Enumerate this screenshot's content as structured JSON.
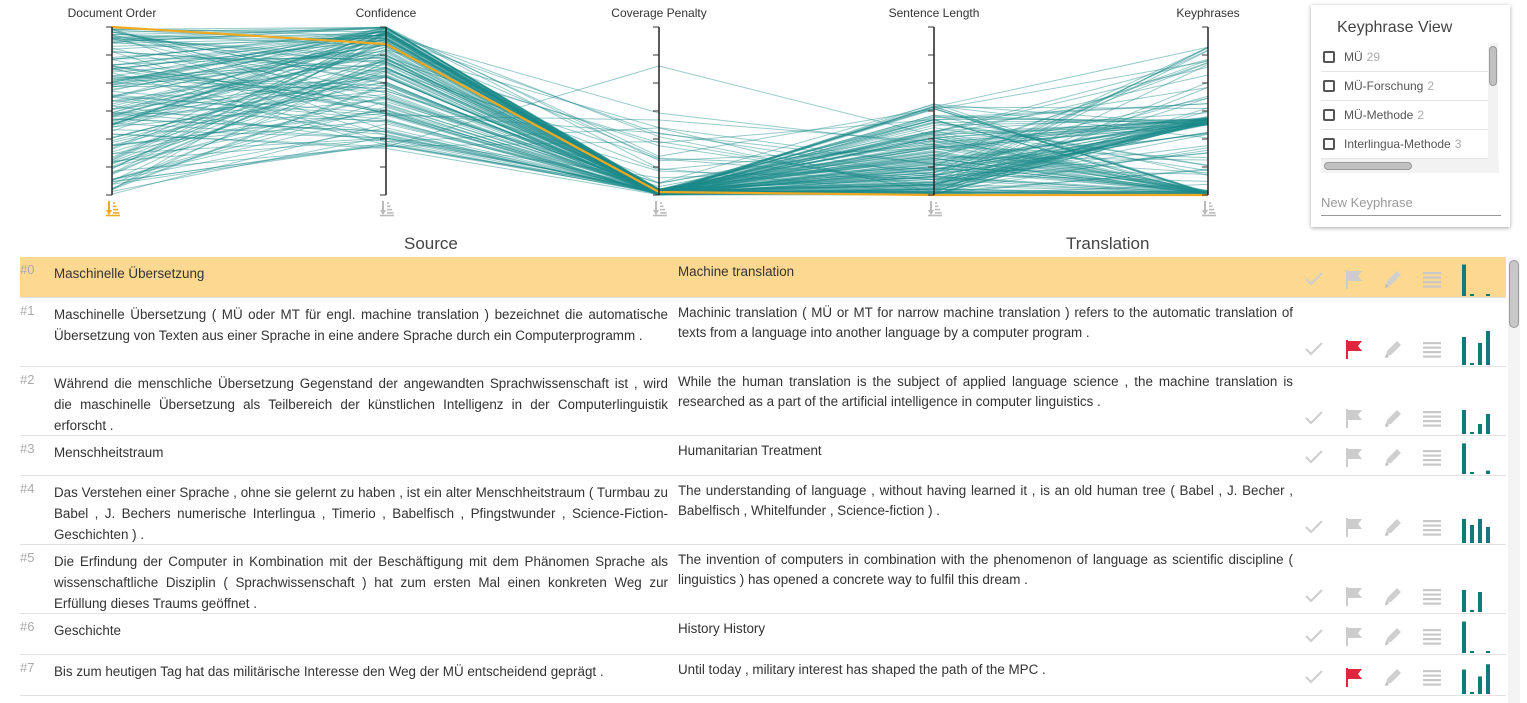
{
  "parallel_coords": {
    "axes": [
      {
        "key": "doc_order",
        "label": "Document Order",
        "sort_active": true
      },
      {
        "key": "confidence",
        "label": "Confidence",
        "sort_active": false
      },
      {
        "key": "coverage",
        "label": "Coverage Penalty",
        "sort_active": false
      },
      {
        "key": "length",
        "label": "Sentence Length",
        "sort_active": false
      },
      {
        "key": "keyphrases",
        "label": "Keyphrases",
        "sort_active": false
      }
    ],
    "line_color": "#1b8a8a",
    "highlight_color": "#f0a820",
    "sort_icon_active_color": "#f0a820",
    "sort_icon_inactive_color": "#bbbbbb"
  },
  "keyphrase_view": {
    "title": "Keyphrase View",
    "items": [
      {
        "label": "MÜ",
        "count": "29"
      },
      {
        "label": "MÜ-Forschung",
        "count": "2"
      },
      {
        "label": "MÜ-Methode",
        "count": "2"
      },
      {
        "label": "Interlingua-Methode",
        "count": "3"
      }
    ],
    "new_placeholder": "New Keyphrase"
  },
  "table": {
    "source_heading": "Source",
    "translation_heading": "Translation",
    "rows": [
      {
        "id": "#0",
        "source": "Maschinelle Übersetzung",
        "translation": "Machine translation",
        "flagged": false,
        "selected": true,
        "bars": [
          0.9,
          0.05,
          0.0,
          0.05
        ]
      },
      {
        "id": "#1",
        "source": "Maschinelle Übersetzung ( MÜ oder MT für engl. machine translation ) bezeichnet die automatische Übersetzung von Texten aus einer Sprache in eine andere Sprache durch ein Computerprogramm .",
        "translation": "Machinic translation ( MÜ or MT for narrow machine translation ) refers to the automatic translation of texts from a language into another language by a computer program .",
        "flagged": true,
        "selected": false,
        "bars": [
          0.7,
          0.05,
          0.55,
          0.85
        ]
      },
      {
        "id": "#2",
        "source": "Während die menschliche Übersetzung Gegenstand der angewandten Sprachwissenschaft ist , wird die maschinelle Übersetzung als Teilbereich der künstlichen Intelligenz in der Computerlinguistik erforscht .",
        "translation": "While the human translation is the subject of applied language science , the machine translation is researched as a part of the artificial intelligence in computer linguistics .",
        "flagged": false,
        "selected": false,
        "bars": [
          0.6,
          0.05,
          0.25,
          0.5
        ]
      },
      {
        "id": "#3",
        "source": "Menschheitstraum",
        "translation": "Humanitarian Treatment",
        "flagged": false,
        "selected": false,
        "bars": [
          0.9,
          0.05,
          0.0,
          0.1
        ]
      },
      {
        "id": "#4",
        "source": "Das Verstehen einer Sprache , ohne sie gelernt zu haben , ist ein alter Menschheitstraum ( Turmbau zu Babel , J. Bechers numerische Interlingua , Timerio , Babelfisch , Pfingstwunder , Science-Fiction-Geschichten ) .",
        "translation": "The understanding of language , without having learned it , is an old human tree ( Babel , J. Becher , Babelfisch , Whitelfunder , Science-fiction ) .",
        "flagged": false,
        "selected": false,
        "bars": [
          0.6,
          0.45,
          0.6,
          0.4
        ]
      },
      {
        "id": "#5",
        "source": "Die Erfindung der Computer in Kombination mit der Beschäftigung mit dem Phänomen Sprache als wissenschaftliche Disziplin ( Sprachwissenschaft ) hat zum ersten Mal einen konkreten Weg zur Erfüllung dieses Traums geöffnet .",
        "translation": "The invention of computers in combination with the phenomenon of language as scientific discipline ( linguistics ) has opened a concrete way to fulfil this dream .",
        "flagged": false,
        "selected": false,
        "bars": [
          0.55,
          0.05,
          0.5,
          0.0
        ]
      },
      {
        "id": "#6",
        "source": "Geschichte",
        "translation": "History History",
        "flagged": false,
        "selected": false,
        "bars": [
          0.9,
          0.05,
          0.0,
          0.05
        ]
      },
      {
        "id": "#7",
        "source": "Bis zum heutigen Tag hat das militärische Interesse den Weg der MÜ entscheidend geprägt .",
        "translation": "Until today , military interest has shaped the path of the MPC .",
        "flagged": true,
        "selected": false,
        "bars": [
          0.7,
          0.05,
          0.5,
          0.85
        ]
      }
    ]
  }
}
